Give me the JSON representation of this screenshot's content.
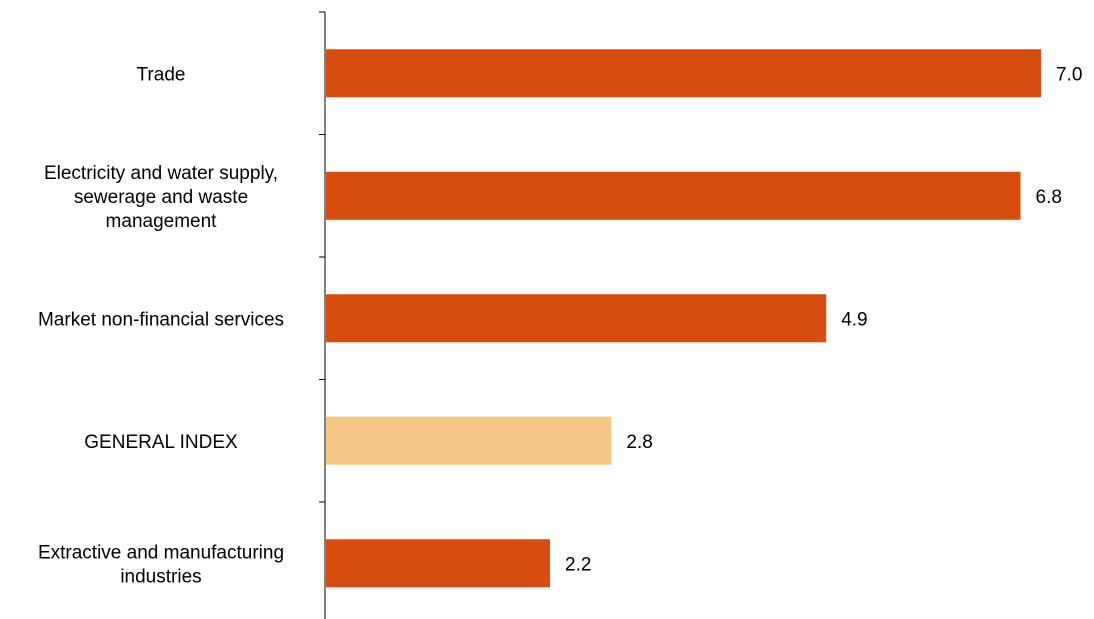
{
  "chart_data": {
    "type": "bar",
    "orientation": "horizontal",
    "categories": [
      "Trade",
      "Electricity and water supply, sewerage and waste management",
      "Market non-financial services",
      "GENERAL INDEX",
      "Extractive and manufacturing industries"
    ],
    "category_lines": [
      [
        "Trade"
      ],
      [
        "Electricity and water supply,",
        "sewerage and waste",
        "management"
      ],
      [
        "Market non-financial services"
      ],
      [
        "GENERAL INDEX"
      ],
      [
        "Extractive and manufacturing",
        "industries"
      ]
    ],
    "values": [
      7.0,
      6.8,
      4.9,
      2.8,
      2.2
    ],
    "value_labels": [
      "7.0",
      "6.8",
      "4.9",
      "2.8",
      "2.2"
    ],
    "bar_colors": [
      "#d64d0f",
      "#d64d0f",
      "#d64d0f",
      "#f5c684",
      "#d64d0f"
    ],
    "title": "",
    "xlabel": "",
    "ylabel": "",
    "xlim": [
      0,
      7.0
    ],
    "grid": false,
    "legend": "none"
  }
}
